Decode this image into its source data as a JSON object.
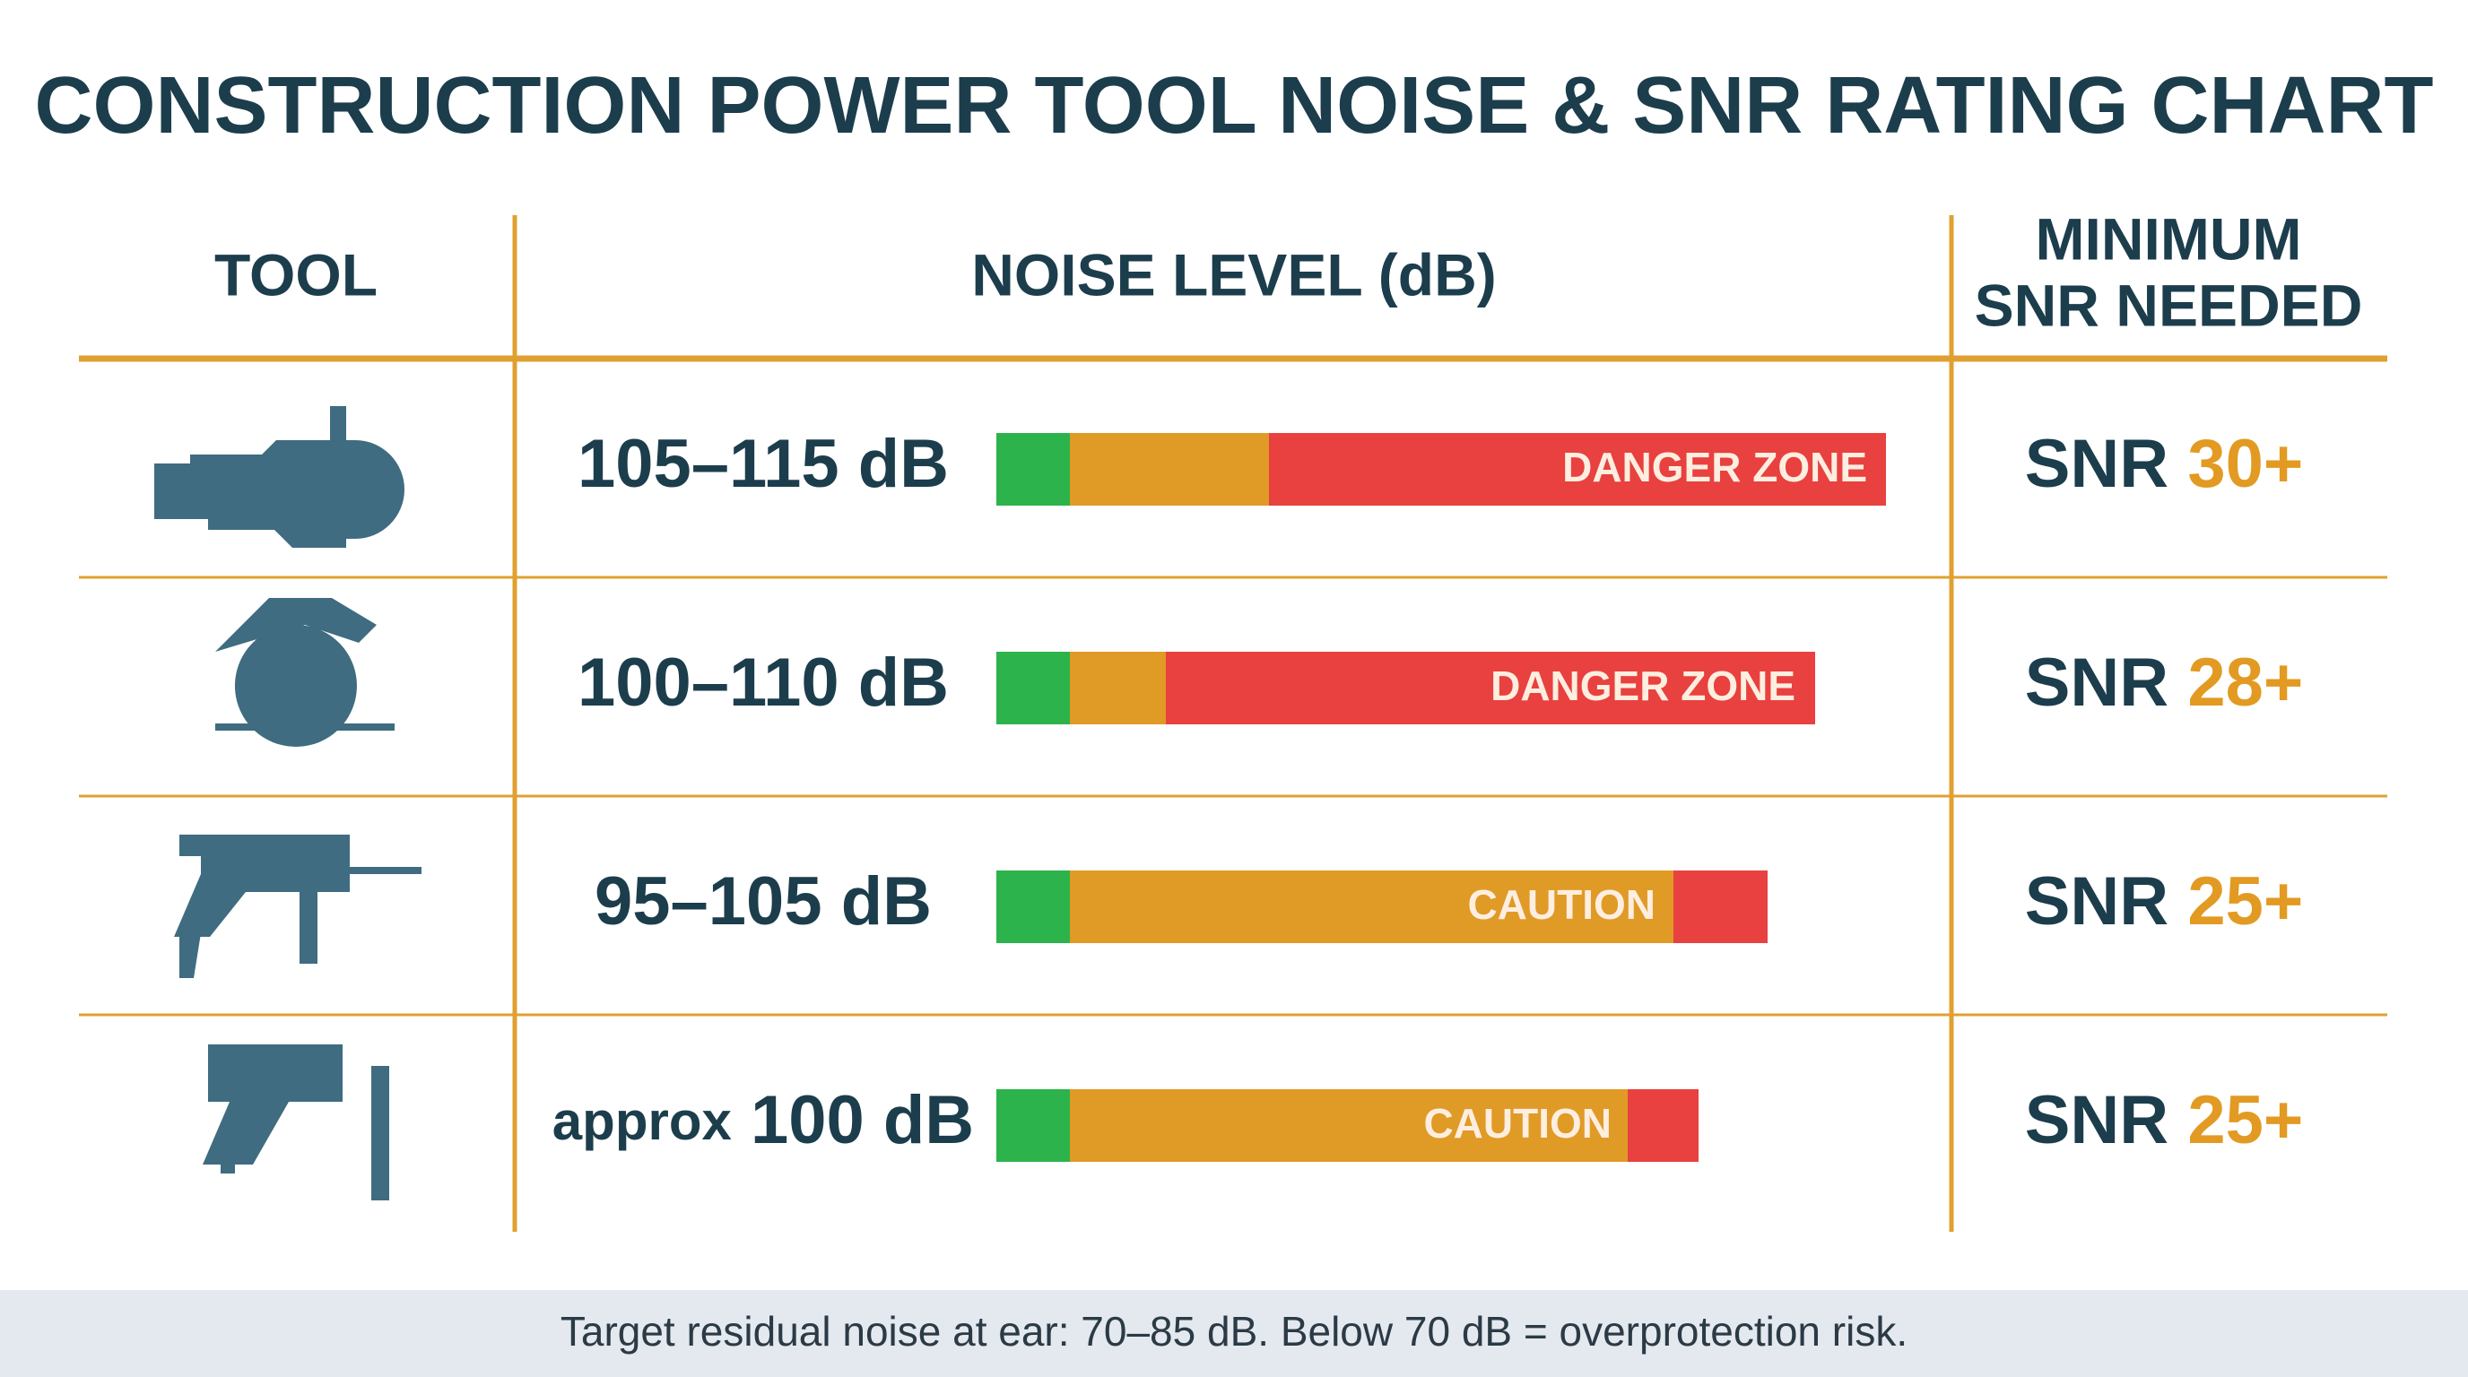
{
  "title": "CONSTRUCTION POWER TOOL NOISE & SNR RATING CHART",
  "header": {
    "tool": "TOOL",
    "noise": "NOISE LEVEL (dB)",
    "snr": [
      "MINIMUM",
      "SNR NEEDED"
    ]
  },
  "rows": [
    {
      "noise": "105–115 dB",
      "zone": "DANGER ZONE",
      "snr_prefix": "SNR",
      "snr": "30+"
    },
    {
      "noise": "100–110 dB",
      "zone": "DANGER ZONE",
      "snr_prefix": "SNR",
      "snr": "28+"
    },
    {
      "noise": "95–105 dB",
      "zone": "CAUTION",
      "snr_prefix": "SNR",
      "snr": "25+"
    },
    {
      "noise_prefix": "approx",
      "noise": "100 dB",
      "zone": "CAUTION",
      "snr_prefix": "SNR",
      "snr": "25+"
    }
  ],
  "footer": "Target residual noise at ear: 70–85 dB. Below 70 dB = overprotection risk."
}
